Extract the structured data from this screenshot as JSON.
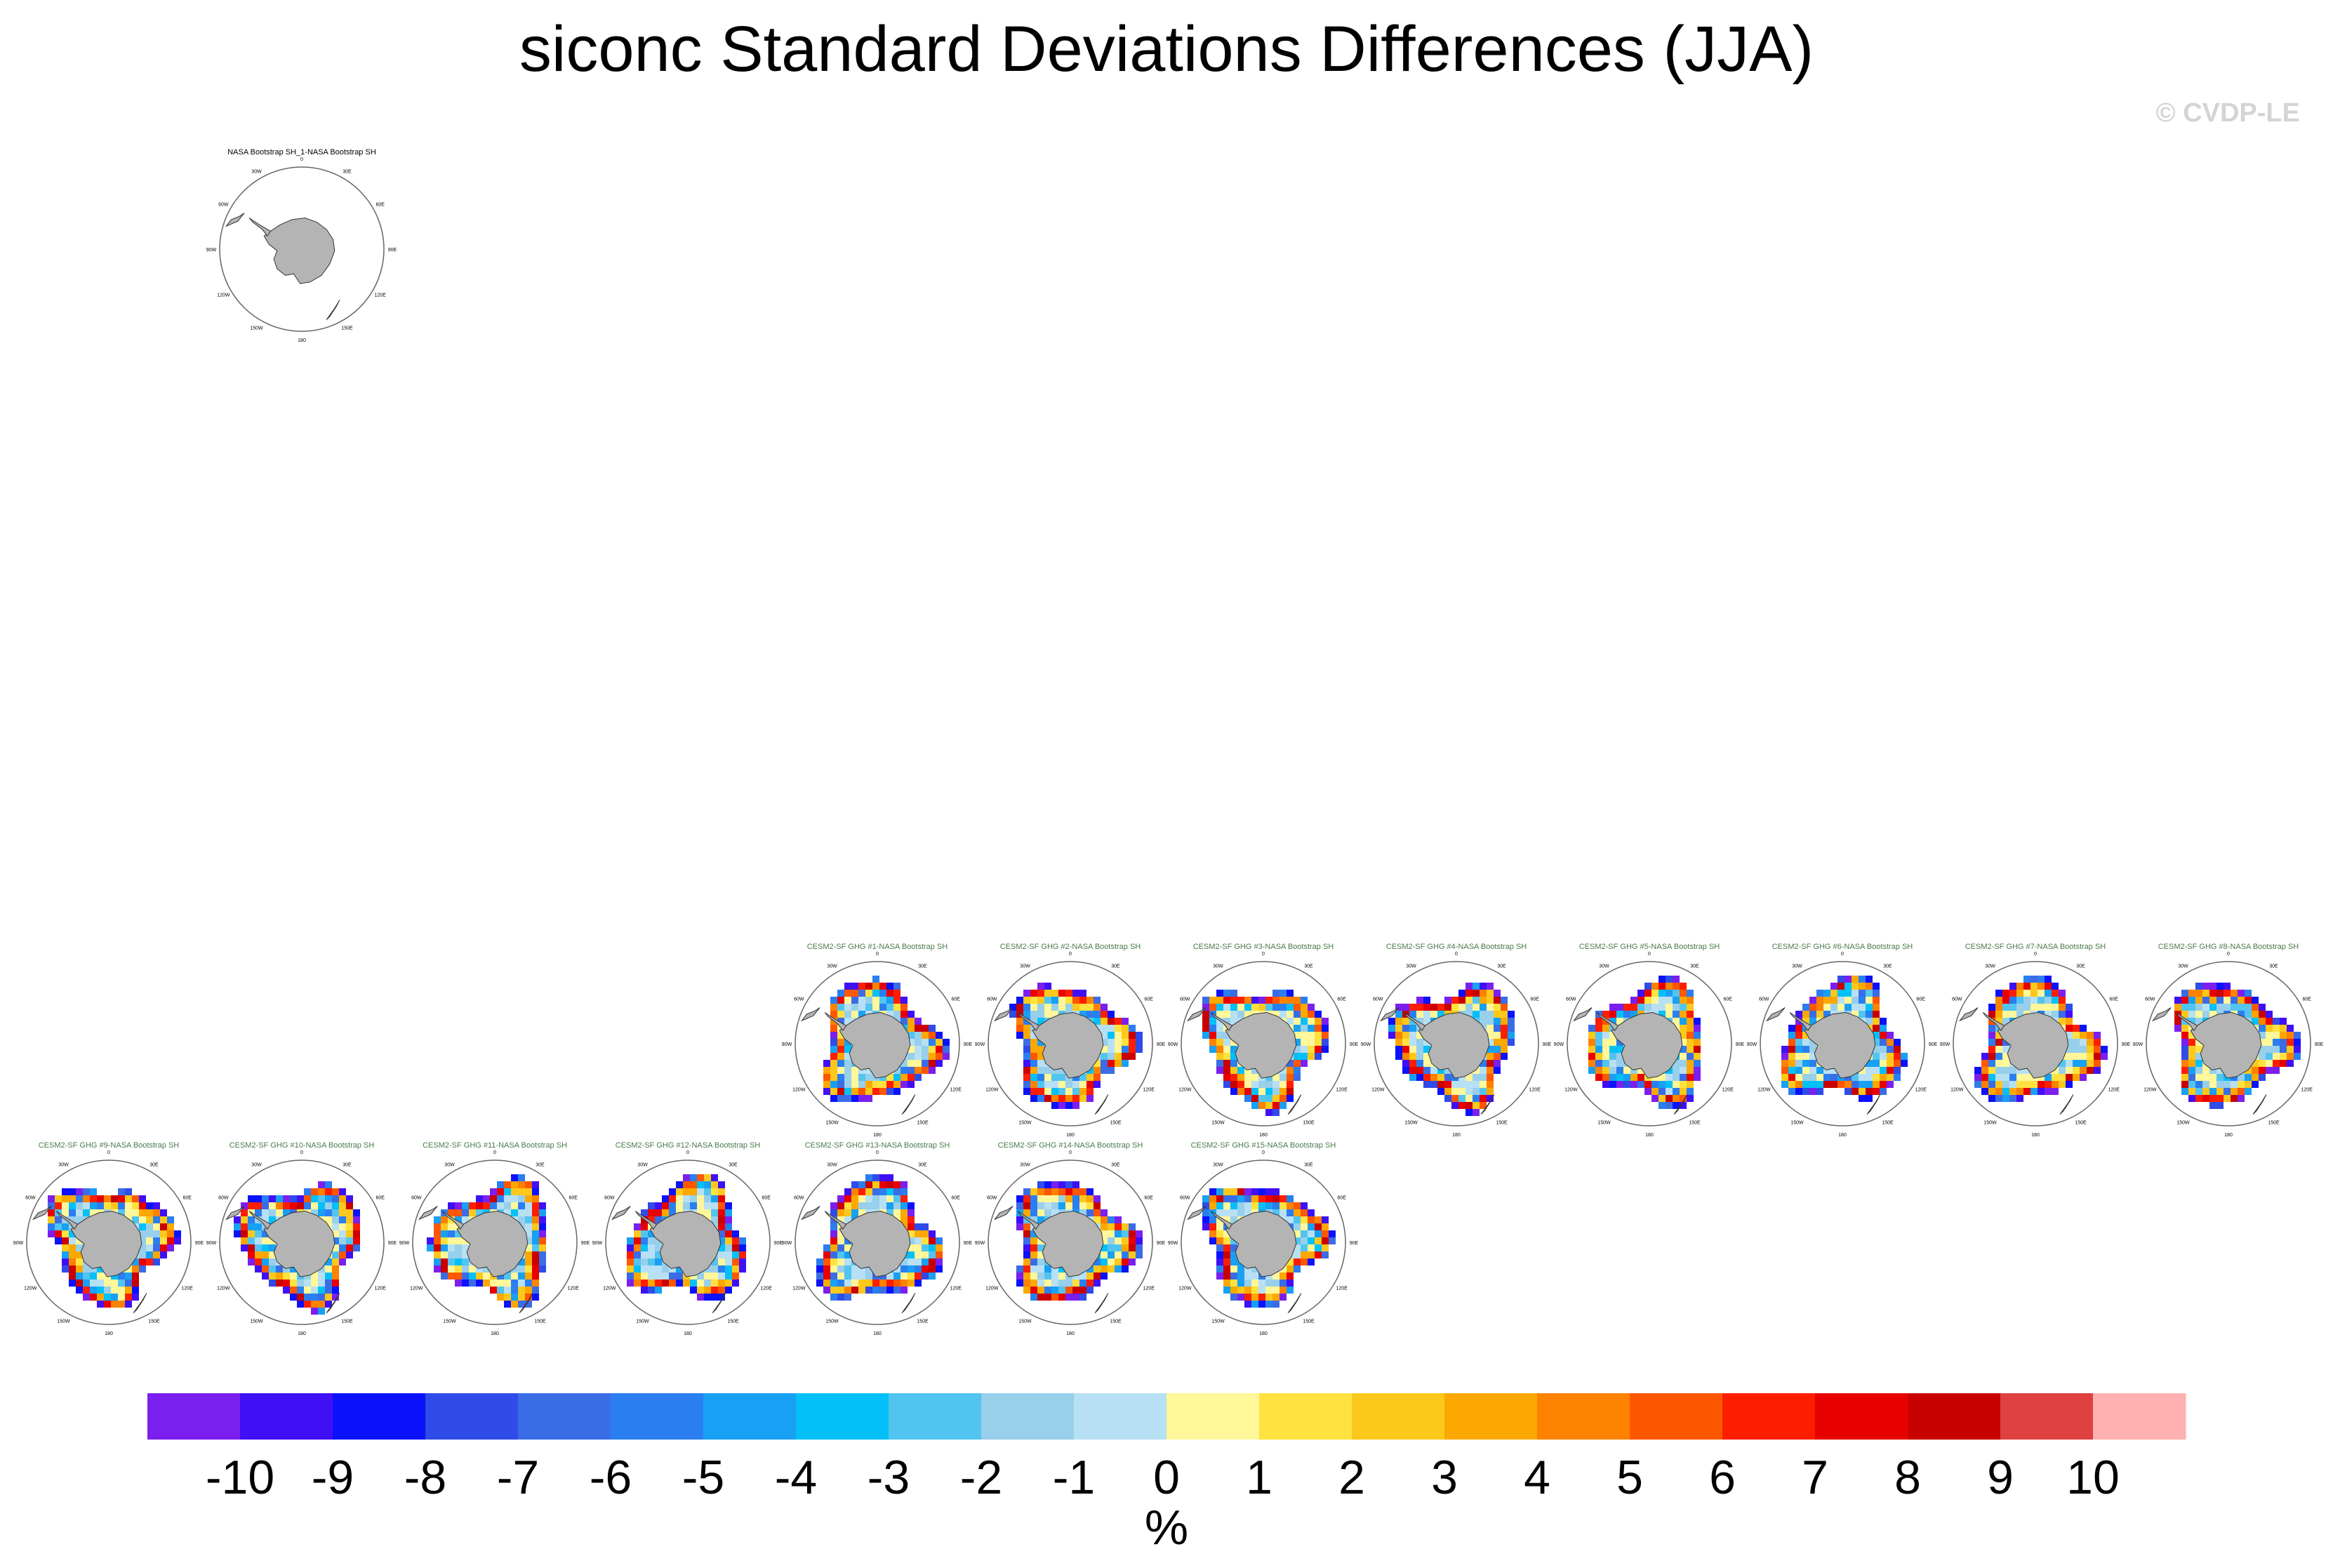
{
  "figure": {
    "title": "siconc Standard Deviations Differences (JJA)",
    "watermark": "© CVDP-LE"
  },
  "chart_data": {
    "type": "heatmap",
    "projection": "south polar stereographic",
    "land_color": "#b4b4b4",
    "reference_panel": {
      "title": "NASA Bootstrap SH_1-NASA Bootstrap SH",
      "title_color": "#000000",
      "longitude_labels": [
        "0",
        "30E",
        "60E",
        "90E",
        "120E",
        "150E",
        "180",
        "150W",
        "120W",
        "90W",
        "60W",
        "30W"
      ],
      "note": "no shaded differences"
    },
    "member_panels": [
      {
        "title": "CESM2-SF GHG #1-NASA Bootstrap SH"
      },
      {
        "title": "CESM2-SF GHG #2-NASA Bootstrap SH"
      },
      {
        "title": "CESM2-SF GHG #3-NASA Bootstrap SH"
      },
      {
        "title": "CESM2-SF GHG #4-NASA Bootstrap SH"
      },
      {
        "title": "CESM2-SF GHG #5-NASA Bootstrap SH"
      },
      {
        "title": "CESM2-SF GHG #6-NASA Bootstrap SH"
      },
      {
        "title": "CESM2-SF GHG #7-NASA Bootstrap SH"
      },
      {
        "title": "CESM2-SF GHG #8-NASA Bootstrap SH"
      },
      {
        "title": "CESM2-SF GHG #9-NASA Bootstrap SH"
      },
      {
        "title": "CESM2-SF GHG #10-NASA Bootstrap SH"
      },
      {
        "title": "CESM2-SF GHG #11-NASA Bootstrap SH"
      },
      {
        "title": "CESM2-SF GHG #12-NASA Bootstrap SH"
      },
      {
        "title": "CESM2-SF GHG #13-NASA Bootstrap SH"
      },
      {
        "title": "CESM2-SF GHG #14-NASA Bootstrap SH"
      },
      {
        "title": "CESM2-SF GHG #15-NASA Bootstrap SH"
      }
    ],
    "member_title_color": "#4a7a4a",
    "colorbar": {
      "label": "%",
      "ticks": [
        "-10",
        "-9",
        "-8",
        "-7",
        "-6",
        "-5",
        "-4",
        "-3",
        "-2",
        "-1",
        "0",
        "1",
        "2",
        "3",
        "4",
        "5",
        "6",
        "7",
        "8",
        "9",
        "10"
      ],
      "colors": [
        "#7b1fee",
        "#3f10f5",
        "#0b12fb",
        "#2f4be8",
        "#3a6ce6",
        "#2a7ef0",
        "#17a0f4",
        "#04c0f8",
        "#52c4f0",
        "#98cfeb",
        "#b8e0f4",
        "#fff799",
        "#ffe240",
        "#fcc81c",
        "#fca800",
        "#fc8200",
        "#fd5700",
        "#fd1e00",
        "#e80000",
        "#c90000",
        "#df4040",
        "#ffb0b0"
      ]
    }
  }
}
